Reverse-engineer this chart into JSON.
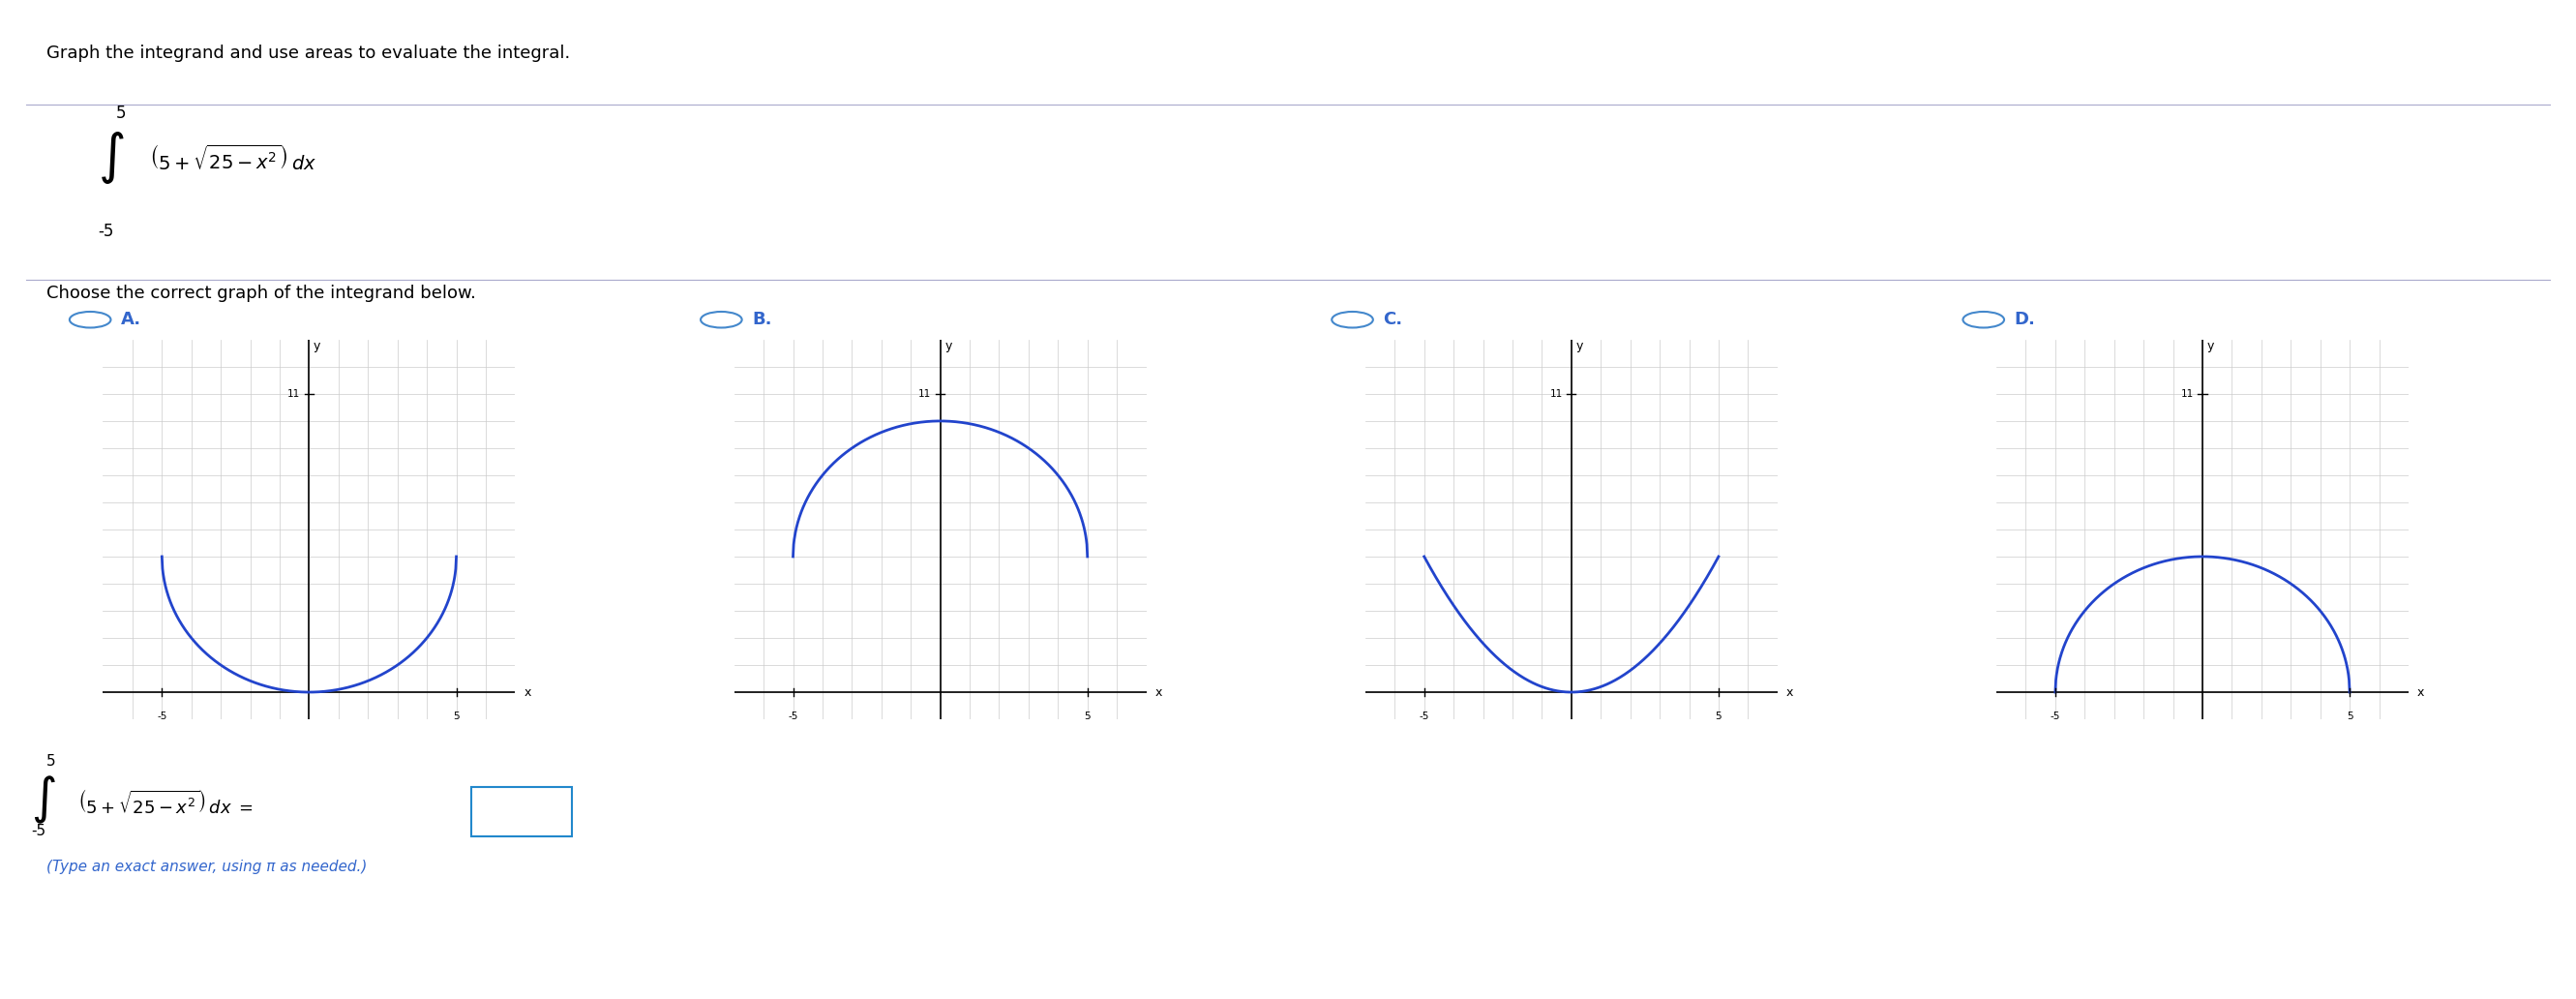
{
  "title_text": "Graph the integrand and use areas to evaluate the integral.",
  "integral_upper": "5",
  "integral_lower": "-5",
  "integral_expr": "(5+√(25−x²)) dx",
  "choose_text": "Choose the correct graph of the integrand below.",
  "option_labels": [
    "A.",
    "B.",
    "C.",
    "D."
  ],
  "graph_xlim": [
    -7,
    7
  ],
  "graph_ylim": [
    -1,
    13
  ],
  "graph_xticks": [
    -5,
    5
  ],
  "graph_ytick_11": 11,
  "x_label": "x",
  "y_label": "y",
  "curve_color": "#2244cc",
  "grid_color": "#cccccc",
  "axis_color": "#000000",
  "bg_color": "#ffffff",
  "option_color": "#3366cc",
  "hint_color": "#3366cc",
  "hint_text": "(Type an exact answer, using π as needed.)",
  "bottom_integral_upper": "5",
  "bottom_integral_lower": "-5",
  "bottom_integral_expr": "(5+√(25−x²)) dx =",
  "radio_color": "#4488cc"
}
